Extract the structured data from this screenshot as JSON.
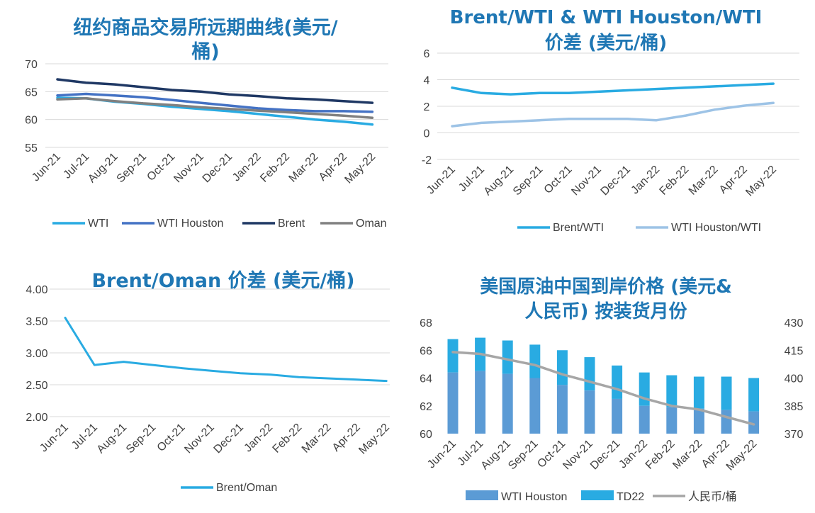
{
  "colors": {
    "title": "#1f77b4",
    "wti": "#29abe2",
    "wti_houston": "#4472c4",
    "brent": "#1f3864",
    "oman": "#808080",
    "brent_wti": "#29abe2",
    "wti_houston_wti": "#9dc3e6",
    "brent_oman": "#29abe2",
    "bar_wti_houston": "#5b9bd5",
    "bar_td22": "#29abe2",
    "rmb_line": "#a6a6a6",
    "grid": "#d9d9d9",
    "text": "#404040"
  },
  "chart_data": [
    {
      "type": "line",
      "title_lines": [
        "纽约商品交易所远期曲线(美元/",
        "桶)"
      ],
      "categories": [
        "Jun-21",
        "Jul-21",
        "Aug-21",
        "Sep-21",
        "Oct-21",
        "Nov-21",
        "Dec-21",
        "Jan-22",
        "Feb-22",
        "Mar-22",
        "Apr-22",
        "May-22"
      ],
      "ylim": [
        55,
        70
      ],
      "yticks": [
        "55",
        "60",
        "65",
        "70"
      ],
      "grid": true,
      "legend_position": "bottom",
      "series": [
        {
          "name": "WTI",
          "values": [
            63.9,
            63.8,
            63.2,
            62.8,
            62.3,
            61.9,
            61.5,
            61.0,
            60.5,
            60.0,
            59.6,
            59.1
          ]
        },
        {
          "name": "WTI Houston",
          "values": [
            64.3,
            64.6,
            64.3,
            64.0,
            63.5,
            63.0,
            62.5,
            62.0,
            61.7,
            61.5,
            61.5,
            61.4
          ]
        },
        {
          "name": "Brent",
          "values": [
            67.2,
            66.6,
            66.3,
            65.8,
            65.3,
            65.0,
            64.5,
            64.2,
            63.8,
            63.6,
            63.3,
            63.0
          ]
        },
        {
          "name": "Oman",
          "values": [
            63.6,
            63.8,
            63.3,
            62.9,
            62.6,
            62.2,
            61.9,
            61.6,
            61.3,
            61.0,
            60.7,
            60.3
          ]
        }
      ]
    },
    {
      "type": "line",
      "title_lines": [
        "Brent/WTI & WTI Houston/WTI",
        "价差 (美元/桶)"
      ],
      "categories": [
        "Jun-21",
        "Jul-21",
        "Aug-21",
        "Sep-21",
        "Oct-21",
        "Nov-21",
        "Dec-21",
        "Jan-22",
        "Feb-22",
        "Mar-22",
        "Apr-22",
        "May-22"
      ],
      "ylim": [
        -2,
        6
      ],
      "yticks": [
        "-2",
        "0",
        "2",
        "4",
        "6"
      ],
      "grid": true,
      "legend_position": "bottom",
      "series": [
        {
          "name": "Brent/WTI",
          "values": [
            3.4,
            3.0,
            2.9,
            3.0,
            3.0,
            3.1,
            3.2,
            3.3,
            3.4,
            3.5,
            3.6,
            3.7
          ]
        },
        {
          "name": "WTI Houston/WTI",
          "values": [
            0.5,
            0.75,
            0.85,
            0.95,
            1.05,
            1.05,
            1.05,
            0.95,
            1.3,
            1.75,
            2.05,
            2.25
          ]
        }
      ]
    },
    {
      "type": "line",
      "title_lines": [
        "Brent/Oman 价差 (美元/桶)"
      ],
      "categories": [
        "Jun-21",
        "Jul-21",
        "Aug-21",
        "Sep-21",
        "Oct-21",
        "Nov-21",
        "Dec-21",
        "Jan-22",
        "Feb-22",
        "Mar-22",
        "Apr-22",
        "May-22"
      ],
      "ylim": [
        2.0,
        4.0
      ],
      "yticks": [
        "2.00",
        "2.50",
        "3.00",
        "3.50",
        "4.00"
      ],
      "grid": true,
      "legend_position": "bottom",
      "series": [
        {
          "name": "Brent/Oman",
          "values": [
            3.55,
            2.81,
            2.86,
            2.81,
            2.76,
            2.72,
            2.68,
            2.66,
            2.62,
            2.6,
            2.58,
            2.56
          ]
        }
      ]
    },
    {
      "type": "bar",
      "stacked": true,
      "title_lines": [
        "美国原油中国到岸价格 (美元&",
        "人民币) 按装货月份"
      ],
      "categories": [
        "Jun-21",
        "Jul-21",
        "Aug-21",
        "Sep-21",
        "Oct-21",
        "Nov-21",
        "Dec-21",
        "Jan-22",
        "Feb-22",
        "Mar-22",
        "Apr-22",
        "May-22"
      ],
      "ylim": [
        60,
        68
      ],
      "yticks": [
        "60",
        "62",
        "64",
        "66",
        "68"
      ],
      "y2lim": [
        370,
        430
      ],
      "y2ticks": [
        "370",
        "385",
        "400",
        "415",
        "430"
      ],
      "grid": false,
      "legend_position": "bottom",
      "series": [
        {
          "name": "WTI Houston",
          "type": "bar",
          "values": [
            64.4,
            64.5,
            64.3,
            64.0,
            63.5,
            63.1,
            62.5,
            62.0,
            61.9,
            61.8,
            61.7,
            61.6
          ]
        },
        {
          "name": "TD22",
          "type": "bar",
          "values": [
            66.8,
            66.9,
            66.7,
            66.4,
            66.0,
            65.5,
            64.9,
            64.4,
            64.2,
            64.1,
            64.1,
            64.0
          ]
        },
        {
          "name": "人民币/桶",
          "type": "line",
          "axis": "right",
          "values": [
            414,
            413,
            410,
            407,
            402,
            398,
            394,
            389,
            385,
            383,
            379,
            375
          ]
        }
      ]
    }
  ]
}
